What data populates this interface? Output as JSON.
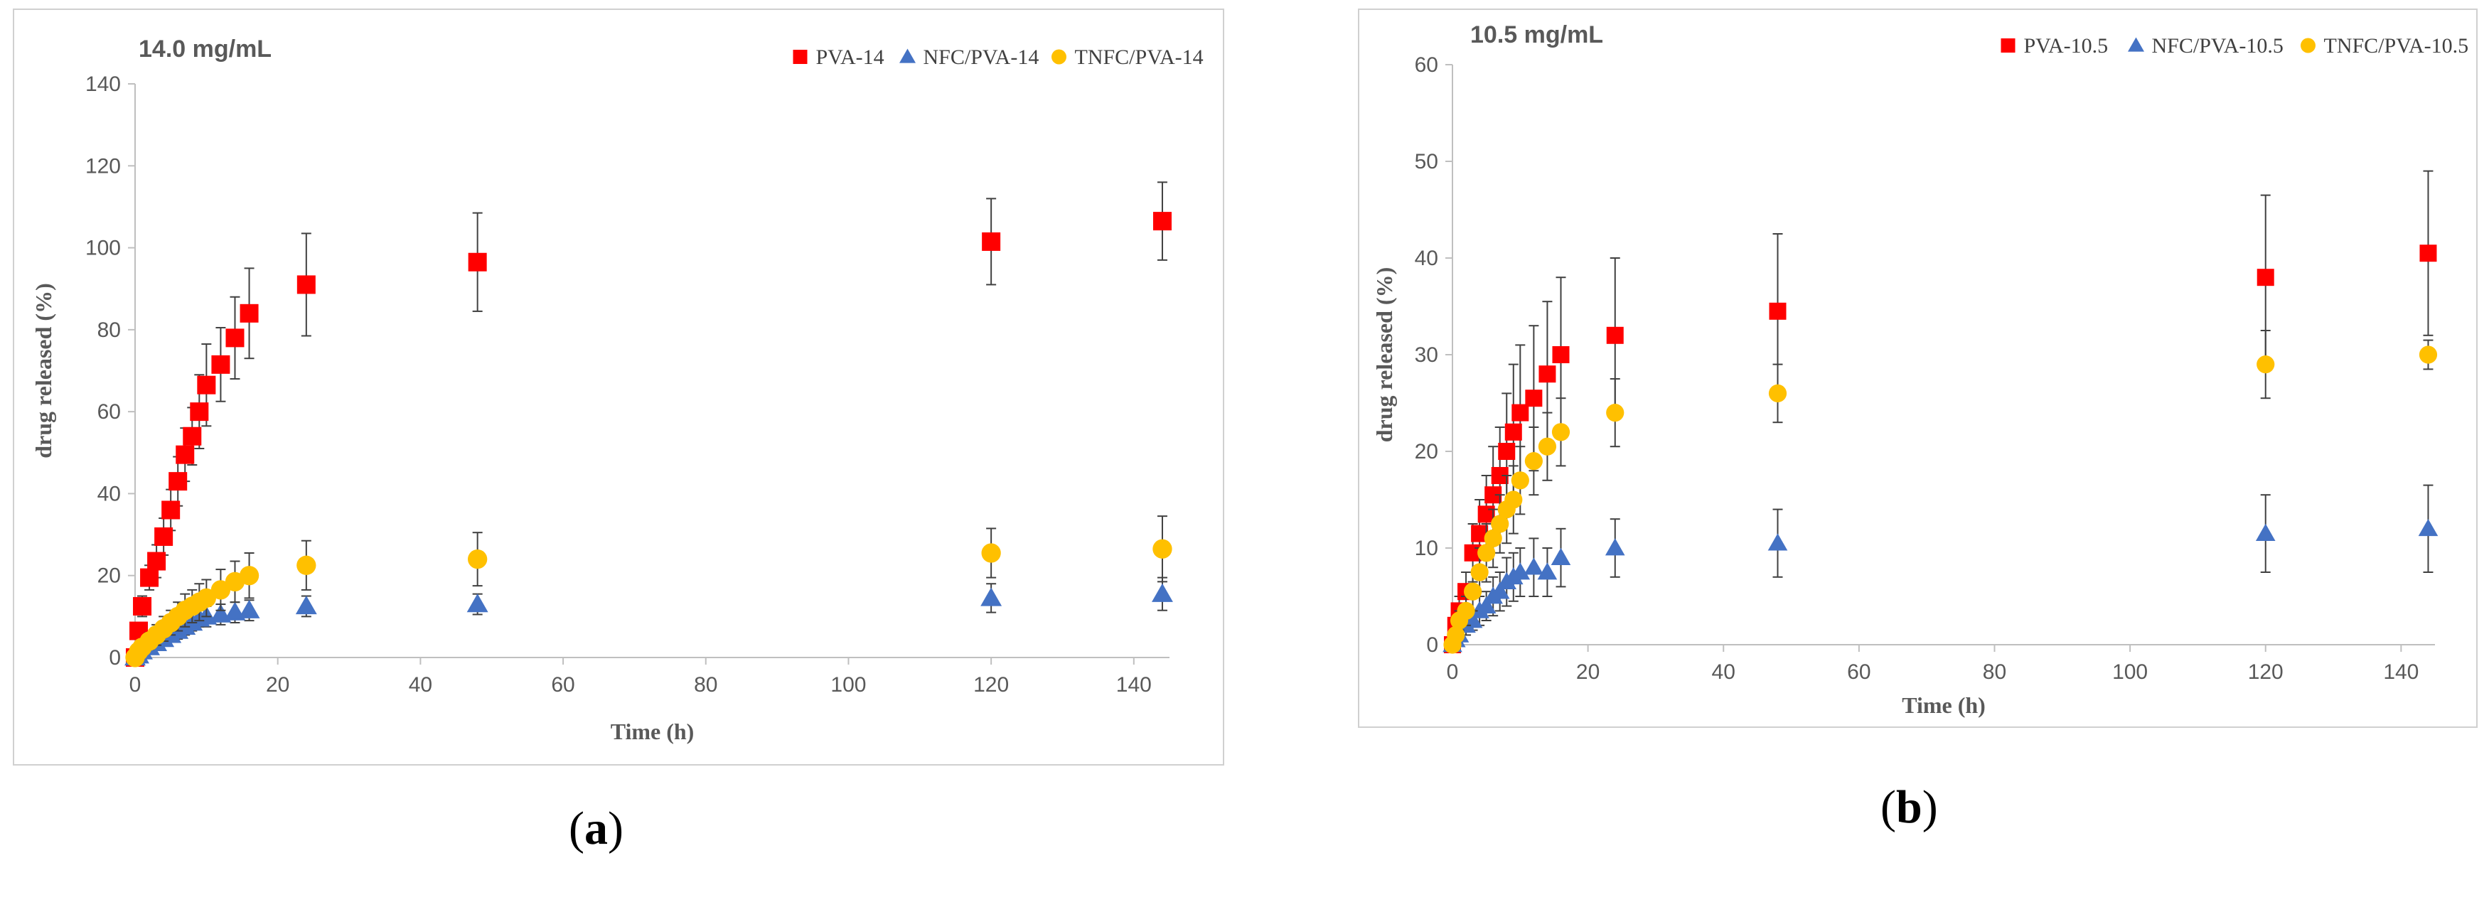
{
  "figure": {
    "label_a": "a",
    "label_b": "b",
    "open_paren": "(",
    "close_paren": ")"
  },
  "colors": {
    "pva": "#ff0000",
    "nfc": "#4472c4",
    "tnfc": "#ffc000",
    "error_bar": "#404040",
    "axis": "#bfbfbf",
    "text": "#595959"
  },
  "chart_data": [
    {
      "id": "a",
      "type": "scatter",
      "title": "14.0 mg/mL",
      "xlabel": "Time (h)",
      "ylabel": "drug released (%)",
      "xlim": [
        0,
        145
      ],
      "ylim": [
        0,
        140
      ],
      "xticks": [
        0,
        20,
        40,
        60,
        80,
        100,
        120,
        140
      ],
      "yticks": [
        0,
        20,
        40,
        60,
        80,
        100,
        120,
        140
      ],
      "legend_position": "top-right",
      "series": [
        {
          "name": "PVA-14",
          "marker": "square",
          "color": "#ff0000",
          "points": [
            [
              0,
              0,
              0
            ],
            [
              0.5,
              6.5,
              1.5
            ],
            [
              1,
              12.5,
              2.5
            ],
            [
              2,
              19.5,
              3
            ],
            [
              3,
              23.5,
              4
            ],
            [
              4,
              29.5,
              4.5
            ],
            [
              5,
              36,
              5
            ],
            [
              6,
              43,
              6
            ],
            [
              7,
              49.5,
              6.5
            ],
            [
              8,
              54,
              7
            ],
            [
              9,
              60,
              9
            ],
            [
              10,
              66.5,
              10
            ],
            [
              12,
              71.5,
              9
            ],
            [
              14,
              78,
              10
            ],
            [
              16,
              84,
              11
            ],
            [
              24,
              91,
              12.5
            ],
            [
              48,
              96.5,
              12
            ],
            [
              120,
              101.5,
              10.5
            ],
            [
              144,
              106.5,
              9.5
            ]
          ]
        },
        {
          "name": "NFC/PVA-14",
          "marker": "triangle",
          "color": "#4472c4",
          "points": [
            [
              0,
              0,
              0
            ],
            [
              0.5,
              0.5,
              0.5
            ],
            [
              1,
              1.5,
              1
            ],
            [
              2,
              2.5,
              1
            ],
            [
              3,
              3.5,
              1.5
            ],
            [
              4,
              4.5,
              1.5
            ],
            [
              5,
              5.5,
              1.5
            ],
            [
              6,
              6.5,
              2
            ],
            [
              7,
              7.5,
              2
            ],
            [
              8,
              8.5,
              2
            ],
            [
              9,
              9.5,
              2
            ],
            [
              10,
              10,
              2.5
            ],
            [
              12,
              10.5,
              2.5
            ],
            [
              14,
              11,
              2.5
            ],
            [
              16,
              11.5,
              2.5
            ],
            [
              24,
              12.5,
              2.5
            ],
            [
              48,
              13,
              2.5
            ],
            [
              120,
              14.5,
              3.5
            ],
            [
              144,
              15.5,
              4
            ]
          ]
        },
        {
          "name": "TNFC/PVA-14",
          "marker": "circle",
          "color": "#ffc000",
          "points": [
            [
              0,
              0,
              0
            ],
            [
              0.5,
              1.5,
              1
            ],
            [
              1,
              2.5,
              1.5
            ],
            [
              2,
              4,
              2
            ],
            [
              3,
              5.5,
              2.5
            ],
            [
              4,
              7,
              3
            ],
            [
              5,
              8.5,
              3
            ],
            [
              6,
              10,
              3.5
            ],
            [
              7,
              11.5,
              4
            ],
            [
              8,
              12.5,
              4
            ],
            [
              9,
              13.5,
              4.5
            ],
            [
              10,
              14.5,
              4.5
            ],
            [
              12,
              16.5,
              5
            ],
            [
              14,
              18.5,
              5
            ],
            [
              16,
              20,
              5.5
            ],
            [
              24,
              22.5,
              6
            ],
            [
              48,
              24,
              6.5
            ],
            [
              120,
              25.5,
              6
            ],
            [
              144,
              26.5,
              8
            ]
          ]
        }
      ]
    },
    {
      "id": "b",
      "type": "scatter",
      "title": "10.5 mg/mL",
      "xlabel": "Time (h)",
      "ylabel": "drug released (%)",
      "xlim": [
        0,
        145
      ],
      "ylim": [
        0,
        60
      ],
      "xticks": [
        0,
        20,
        40,
        60,
        80,
        100,
        120,
        140
      ],
      "yticks": [
        0,
        10,
        20,
        30,
        40,
        50,
        60
      ],
      "legend_position": "top-right",
      "series": [
        {
          "name": "PVA-10.5",
          "marker": "square",
          "color": "#ff0000",
          "points": [
            [
              0,
              0,
              0
            ],
            [
              0.5,
              2,
              1
            ],
            [
              1,
              3.5,
              1.5
            ],
            [
              2,
              5.5,
              2
            ],
            [
              3,
              9.5,
              3
            ],
            [
              4,
              11.5,
              3.5
            ],
            [
              5,
              13.5,
              4
            ],
            [
              6,
              15.5,
              5
            ],
            [
              7,
              17.5,
              5
            ],
            [
              8,
              20,
              6
            ],
            [
              9,
              22,
              7
            ],
            [
              10,
              24,
              7
            ],
            [
              12,
              25.5,
              7.5
            ],
            [
              14,
              28,
              7.5
            ],
            [
              16,
              30,
              8
            ],
            [
              24,
              32,
              8
            ],
            [
              48,
              34.5,
              8
            ],
            [
              120,
              38,
              8.5
            ],
            [
              144,
              40.5,
              8.5
            ]
          ]
        },
        {
          "name": "NFC/PVA-10.5",
          "marker": "triangle",
          "color": "#4472c4",
          "points": [
            [
              0,
              0,
              0
            ],
            [
              0.5,
              0.5,
              0.5
            ],
            [
              1,
              1,
              0.5
            ],
            [
              2,
              2,
              1
            ],
            [
              3,
              2.5,
              1
            ],
            [
              4,
              3.5,
              1.5
            ],
            [
              5,
              4,
              1.5
            ],
            [
              6,
              5,
              2
            ],
            [
              7,
              5.5,
              2
            ],
            [
              8,
              6.5,
              2.5
            ],
            [
              9,
              7,
              2.5
            ],
            [
              10,
              7.5,
              2.5
            ],
            [
              12,
              8,
              3
            ],
            [
              14,
              7.5,
              2.5
            ],
            [
              16,
              9,
              3
            ],
            [
              24,
              10,
              3
            ],
            [
              48,
              10.5,
              3.5
            ],
            [
              120,
              11.5,
              4
            ],
            [
              144,
              12,
              4.5
            ]
          ]
        },
        {
          "name": "TNFC/PVA-10.5",
          "marker": "circle",
          "color": "#ffc000",
          "points": [
            [
              0,
              0,
              0
            ],
            [
              0.5,
              1,
              0.5
            ],
            [
              1,
              2.5,
              1
            ],
            [
              2,
              3.5,
              1.5
            ],
            [
              3,
              5.5,
              2
            ],
            [
              4,
              7.5,
              2.5
            ],
            [
              5,
              9.5,
              3
            ],
            [
              6,
              11,
              3
            ],
            [
              7,
              12.5,
              3
            ],
            [
              8,
              14,
              3.5
            ],
            [
              9,
              15,
              3.5
            ],
            [
              10,
              17,
              3.5
            ],
            [
              12,
              19,
              3.5
            ],
            [
              14,
              20.5,
              3.5
            ],
            [
              16,
              22,
              3.5
            ],
            [
              24,
              24,
              3.5
            ],
            [
              48,
              26,
              3
            ],
            [
              120,
              29,
              3.5
            ],
            [
              144,
              30,
              1.5
            ]
          ]
        }
      ]
    }
  ]
}
